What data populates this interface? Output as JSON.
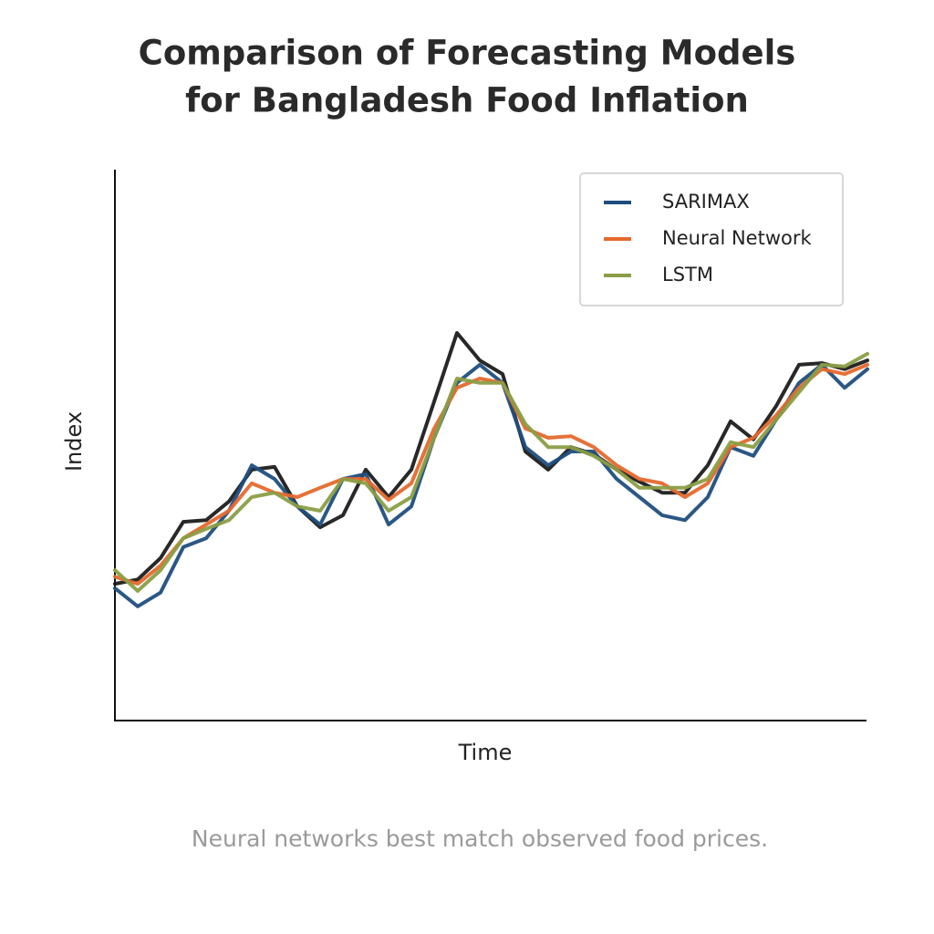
{
  "chart_data": {
    "type": "line",
    "title": [
      "Comparison of Forecasting Models",
      "for Bangladesh Food Inflation"
    ],
    "xlabel": "Time",
    "ylabel": "Index",
    "note": "Neural networks best match observed food prices.",
    "legend": "upper right",
    "grid": false,
    "x": [
      0,
      1,
      2,
      3,
      4,
      5,
      6,
      7,
      8,
      9,
      10,
      11,
      12,
      13,
      14,
      15,
      16,
      17,
      18,
      19,
      20,
      21,
      22,
      23,
      24,
      25,
      26,
      27,
      28,
      29,
      30,
      31,
      32,
      33
    ],
    "xlim": [
      0,
      33
    ],
    "ylim": [
      0,
      100
    ],
    "series": [
      {
        "color": "#1c1c1c",
        "values": [
          24.9,
          25.7,
          29.6,
          36.2,
          36.5,
          39.9,
          45.7,
          46.2,
          39.0,
          35.2,
          37.4,
          45.7,
          40.7,
          45.7,
          58.1,
          70.6,
          65.6,
          63.1,
          49.0,
          45.7,
          49.8,
          48.5,
          45.7,
          43.5,
          41.5,
          41.5,
          46.5,
          54.5,
          51.2,
          57.3,
          64.8,
          65.1,
          64.0,
          65.6
        ]
      },
      {
        "name": "SARIMAX",
        "color": "#1f4e7e",
        "values": [
          24.1,
          20.8,
          23.3,
          31.6,
          33.2,
          38.2,
          46.5,
          44.0,
          39.0,
          35.7,
          44.0,
          44.9,
          35.7,
          39.0,
          51.5,
          61.5,
          64.8,
          61.5,
          49.8,
          46.5,
          49.0,
          49.0,
          44.0,
          40.7,
          37.4,
          36.5,
          40.7,
          49.8,
          48.2,
          54.8,
          61.5,
          64.8,
          60.6,
          64.0
        ]
      },
      {
        "name": "Neural Network",
        "color": "#e5692d",
        "values": [
          26.2,
          24.9,
          28.2,
          33.2,
          35.7,
          38.2,
          43.2,
          41.5,
          40.7,
          42.4,
          44.0,
          44.0,
          40.2,
          43.2,
          53.2,
          60.6,
          62.3,
          61.5,
          53.2,
          51.5,
          51.8,
          49.8,
          46.5,
          44.0,
          43.2,
          40.7,
          43.2,
          49.8,
          51.5,
          55.6,
          60.6,
          64.0,
          63.1,
          64.8
        ]
      },
      {
        "name": "LSTM",
        "color": "#8a9e45",
        "values": [
          27.4,
          23.6,
          27.4,
          33.2,
          34.9,
          36.5,
          40.7,
          41.5,
          39.0,
          38.2,
          44.0,
          43.2,
          38.2,
          40.7,
          51.5,
          62.3,
          61.5,
          61.5,
          54.0,
          49.8,
          49.8,
          48.2,
          45.7,
          42.4,
          42.4,
          42.4,
          44.0,
          50.7,
          49.8,
          54.8,
          59.8,
          64.8,
          64.5,
          66.8
        ]
      }
    ]
  }
}
